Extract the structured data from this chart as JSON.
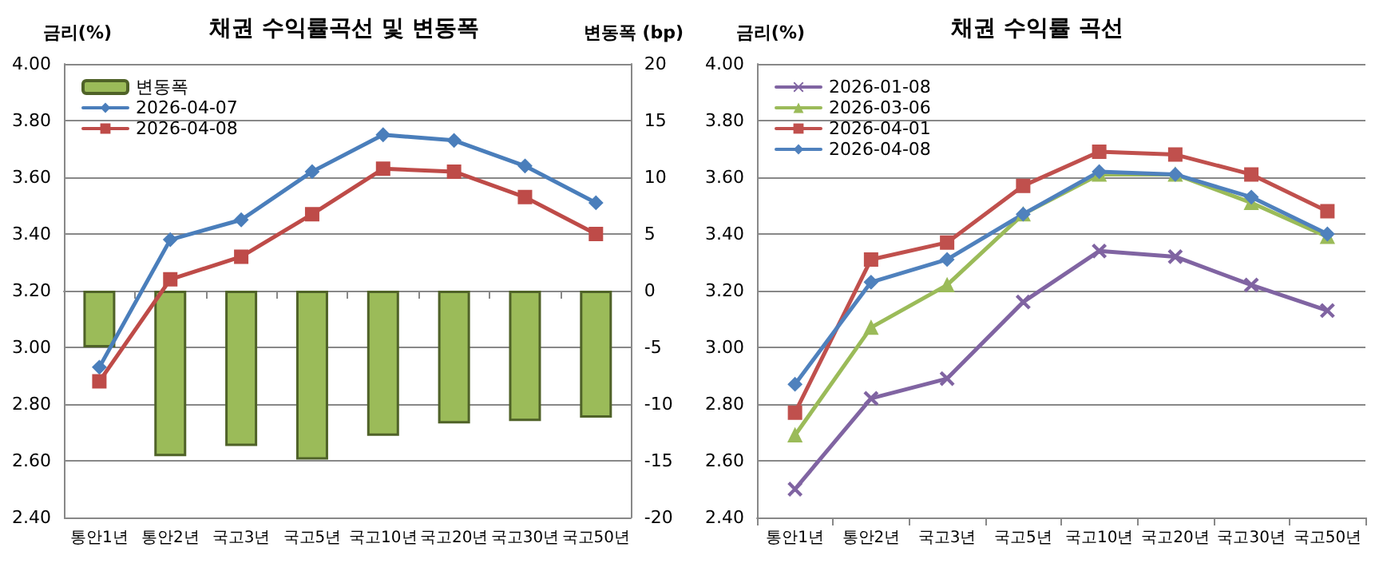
{
  "chart_data": [
    {
      "type": "line",
      "title": "채권 수익률곡선 및 변동폭",
      "ylabel": "금리(%)",
      "y2label": "변동폭 (bp)",
      "categories": [
        "통안1년",
        "통안2년",
        "국고3년",
        "국고5년",
        "국고10년",
        "국고20년",
        "국고30년",
        "국고50년"
      ],
      "series": [
        {
          "name": "변동폭",
          "type": "bar",
          "axis": "y2",
          "color": "#9bbb59",
          "values": [
            -5.0,
            -14.6,
            -13.7,
            -14.9,
            -12.8,
            -11.7,
            -11.5,
            -11.2
          ]
        },
        {
          "name": "2026-04-07",
          "color": "#4a7ebb",
          "marker": "diamond",
          "values": [
            2.93,
            3.38,
            3.45,
            3.62,
            3.75,
            3.73,
            3.64,
            3.51
          ]
        },
        {
          "name": "2026-04-08",
          "color": "#be4b48",
          "marker": "square",
          "values": [
            2.88,
            3.24,
            3.32,
            3.47,
            3.63,
            3.62,
            3.53,
            3.4
          ]
        }
      ],
      "ylim": [
        2.4,
        4.0
      ],
      "yticks": [
        {
          "value": 2.4,
          "label": "2.40"
        },
        {
          "value": 2.6,
          "label": "2.60"
        },
        {
          "value": 2.8,
          "label": "2.80"
        },
        {
          "value": 3.0,
          "label": "3.00"
        },
        {
          "value": 3.2,
          "label": "3.20"
        },
        {
          "value": 3.4,
          "label": "3.40"
        },
        {
          "value": 3.6,
          "label": "3.60"
        },
        {
          "value": 3.8,
          "label": "3.80"
        },
        {
          "value": 4.0,
          "label": "4.00"
        }
      ],
      "y2lim": [
        -20,
        20
      ],
      "y2ticks": [
        -20,
        -15,
        -10,
        -5,
        0,
        5,
        10,
        15,
        20
      ],
      "grid": "y",
      "legend": "top left"
    },
    {
      "type": "line",
      "title": "채권 수익률 곡선",
      "ylabel": "금리(%)",
      "categories": [
        "통안1년",
        "통안2년",
        "국고3년",
        "국고5년",
        "국고10년",
        "국고20년",
        "국고30년",
        "국고50년"
      ],
      "series": [
        {
          "name": "2026-01-08",
          "color": "#8064a2",
          "marker": "cross",
          "values": [
            2.5,
            2.82,
            2.89,
            3.16,
            3.34,
            3.32,
            3.22,
            3.13
          ]
        },
        {
          "name": "2026-03-06",
          "color": "#9bbb59",
          "marker": "triangle",
          "values": [
            2.69,
            3.07,
            3.22,
            3.47,
            3.61,
            3.61,
            3.51,
            3.39
          ]
        },
        {
          "name": "2026-04-01",
          "color": "#c0504d",
          "marker": "square",
          "values": [
            2.77,
            3.31,
            3.37,
            3.57,
            3.69,
            3.68,
            3.61,
            3.48
          ]
        },
        {
          "name": "2026-04-08",
          "color": "#4f81bd",
          "marker": "diamond",
          "values": [
            2.87,
            3.23,
            3.31,
            3.47,
            3.62,
            3.61,
            3.53,
            3.4
          ]
        }
      ],
      "ylim": [
        2.4,
        4.0
      ],
      "yticks": [
        {
          "value": 2.4,
          "label": "2.40"
        },
        {
          "value": 2.6,
          "label": "2.60"
        },
        {
          "value": 2.8,
          "label": "2.80"
        },
        {
          "value": 3.0,
          "label": "3.00"
        },
        {
          "value": 3.2,
          "label": "3.20"
        },
        {
          "value": 3.4,
          "label": "3.40"
        },
        {
          "value": 3.6,
          "label": "3.60"
        },
        {
          "value": 3.8,
          "label": "3.80"
        },
        {
          "value": 4.0,
          "label": "4.00"
        }
      ],
      "grid": "y",
      "legend": "top left"
    }
  ]
}
